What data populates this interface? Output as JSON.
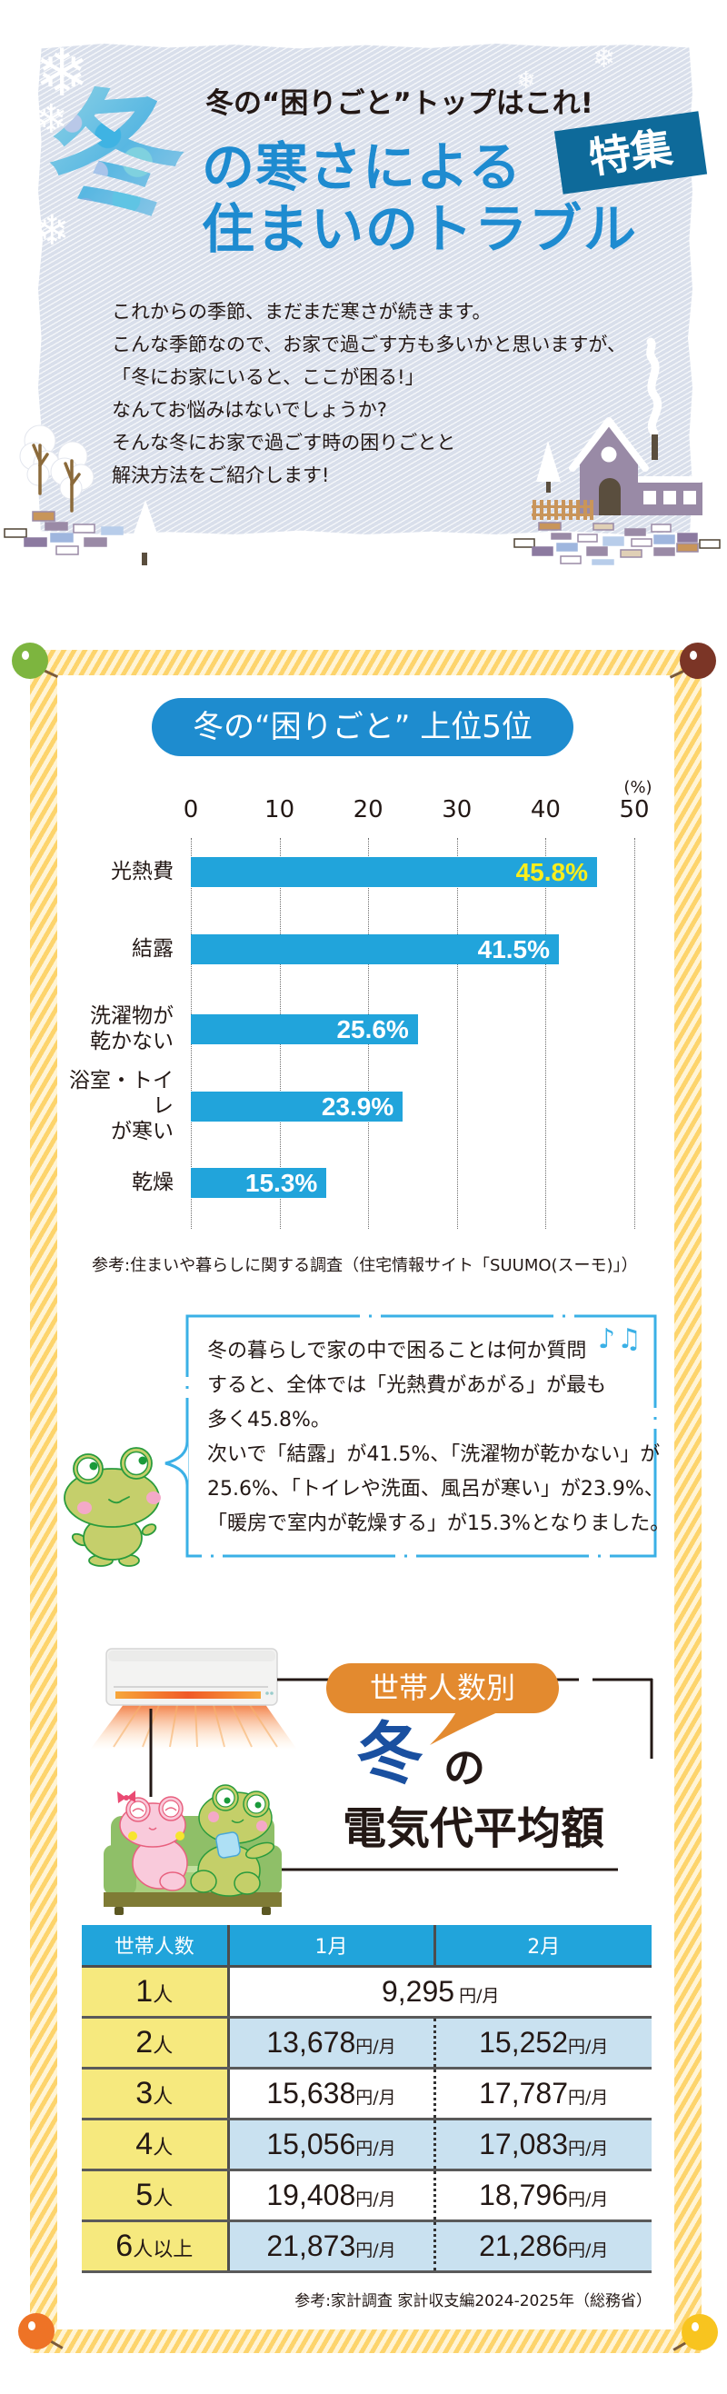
{
  "header": {
    "kicker": "冬の“困りごと”トップはこれ!",
    "big_char": "冬",
    "title_line1": "の寒さによる",
    "title_line2": "住まいのトラブル",
    "badge": "特集",
    "intro_lines": [
      "これからの季節、まだまだ寒さが続きます。",
      "こんな季節なので、お家で過ごす方も多いかと思いますが、",
      "「冬にお家にいると、ここが困る!」",
      "なんてお悩みはないでしょうか?",
      "そんな冬にお家で過ごす時の困りごとと",
      "解決方法をご紹介します!"
    ],
    "icons": [
      "snowflake-icon",
      "house-illustration",
      "tree-illustration"
    ]
  },
  "ranking": {
    "title": "冬の“困りごと” 上位5位",
    "unit_label": "(%)",
    "source": "参考:住まいや暮らしに関する調査（住宅情報サイト「SUUMO(スーモ)」）"
  },
  "chart_data": {
    "type": "bar",
    "orientation": "horizontal",
    "title": "冬の“困りごと” 上位5位",
    "categories": [
      "光熱費",
      "結露",
      "洗濯物が乾かない",
      "浴室・トイレが寒い",
      "乾燥"
    ],
    "display_labels": [
      "光熱費",
      "結露",
      "洗濯物が\n乾かない",
      "浴室・トイレ\nが寒い",
      "乾燥"
    ],
    "values": [
      45.8,
      41.5,
      25.6,
      23.9,
      15.3
    ],
    "value_labels": [
      "45.8%",
      "41.5%",
      "25.6%",
      "23.9%",
      "15.3%"
    ],
    "value_label_colors": [
      "#f9ee1c",
      "#ffffff",
      "#ffffff",
      "#ffffff",
      "#ffffff"
    ],
    "xticks": [
      0,
      10,
      20,
      30,
      40,
      50
    ],
    "xlim": [
      0,
      50
    ],
    "xlabel": "(%)",
    "ylabel": "",
    "grid": "vertical dotted",
    "bar_color": "#21a4db",
    "source": "参考:住まいや暮らしに関する調査（住宅情報サイト「SUUMO(スーモ)」）"
  },
  "comment": {
    "lines": [
      "冬の暮らしで家の中で困ることは何か質問",
      "すると、全体では「光熱費があがる」が最も",
      "多く45.8%。",
      "次いで「結露」が41.5%、「洗濯物が乾かない」が",
      "25.6%、「トイレや洗面、風呂が寒い」が23.9%、",
      "「暖房で室内が乾燥する」が15.3%となりました。"
    ],
    "notes_glyph": "♪♫",
    "icon": "music-notes-icon",
    "mascot": "frog-mascot"
  },
  "electricity": {
    "tag": "世帯人数別",
    "title_char": "冬",
    "title_particle": "の",
    "title": "電気代平均額",
    "table": {
      "headers": [
        "世帯人数",
        "1月",
        "2月"
      ],
      "unit": "円/月",
      "rows": [
        {
          "household": "1",
          "household_unit": "人",
          "merged": "9,295"
        },
        {
          "household": "2",
          "household_unit": "人",
          "jan": "13,678",
          "feb": "15,252"
        },
        {
          "household": "3",
          "household_unit": "人",
          "jan": "15,638",
          "feb": "17,787"
        },
        {
          "household": "4",
          "household_unit": "人",
          "jan": "15,056",
          "feb": "17,083"
        },
        {
          "household": "5",
          "household_unit": "人",
          "jan": "19,408",
          "feb": "18,796"
        },
        {
          "household": "6",
          "household_unit": "人以上",
          "jan": "21,873",
          "feb": "21,286"
        }
      ]
    },
    "source": "参考:家計調査 家計収支編2024-2025年（総務省）"
  },
  "colors": {
    "title_blue": "#1e8bd0",
    "badge_blue": "#0e6a9a",
    "bar_blue": "#21a4db",
    "highlight_yellow": "#f9ee1c",
    "tag_orange": "#e38a2f",
    "table_yellow": "#f6e97e",
    "table_light_blue": "#c9e1f0",
    "frame_stripe": "#fdd46c",
    "pin_colors": [
      "#7db53f",
      "#7b3526",
      "#ee7326",
      "#f8c41f"
    ]
  }
}
